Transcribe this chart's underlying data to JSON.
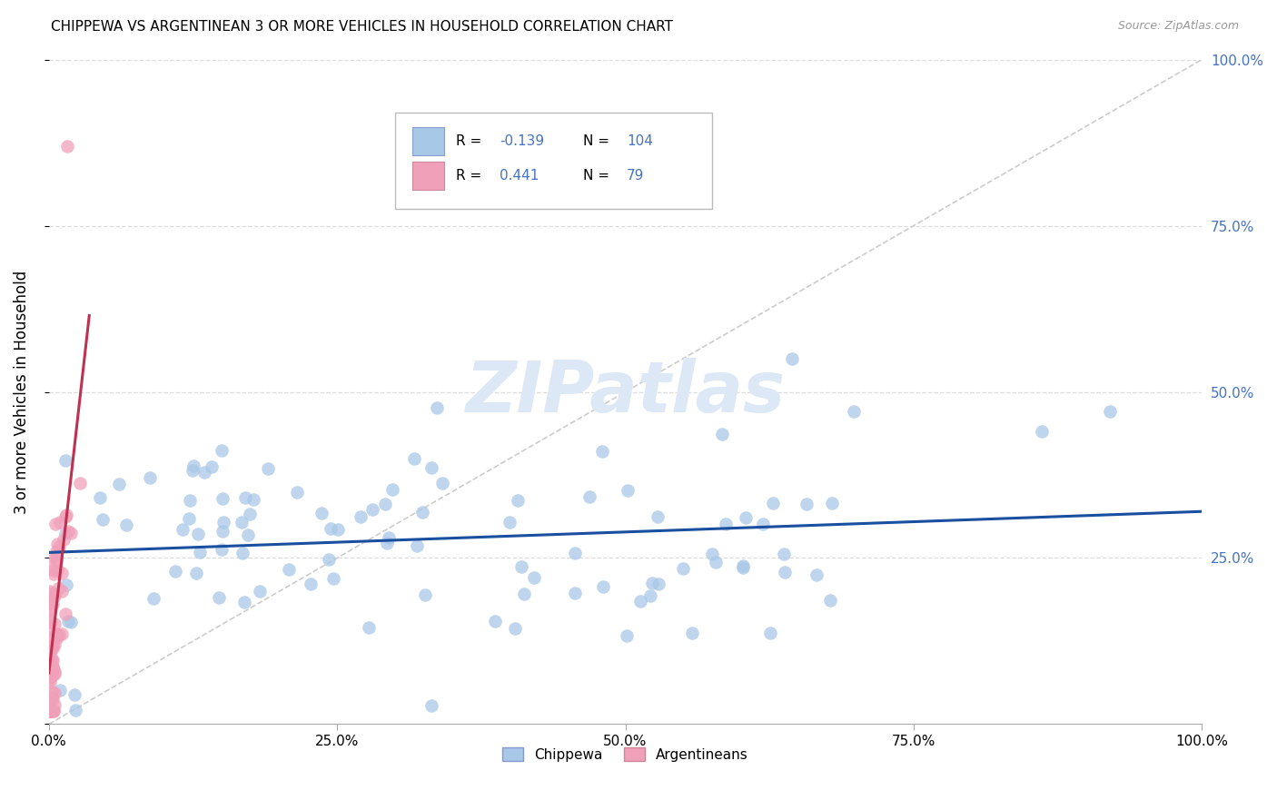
{
  "title": "CHIPPEWA VS ARGENTINEAN 3 OR MORE VEHICLES IN HOUSEHOLD CORRELATION CHART",
  "source": "Source: ZipAtlas.com",
  "ylabel": "3 or more Vehicles in Household",
  "chippewa_R": -0.139,
  "chippewa_N": 104,
  "argentinean_R": 0.441,
  "argentinean_N": 79,
  "blue_color": "#a8c8e8",
  "pink_color": "#f0a0b8",
  "blue_line_color": "#1a4fa0",
  "pink_line_color": "#c03050",
  "diag_color": "#cccccc",
  "grid_color": "#dddddd",
  "watermark_color": "#dce8f5",
  "right_tick_color": "#4472c4",
  "legend_text_color": "#4472c4"
}
